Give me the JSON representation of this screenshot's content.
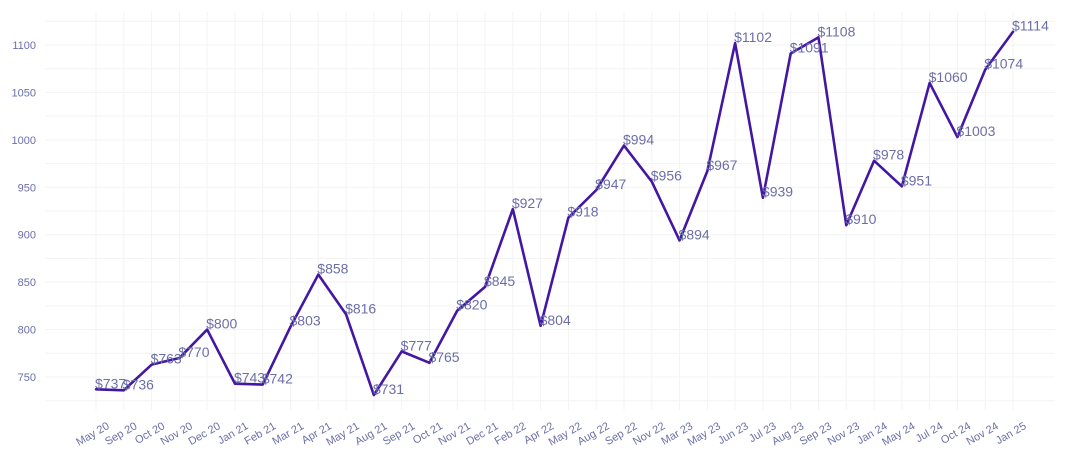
{
  "colors": {
    "line": "#4417a3",
    "text": "#6b6fa8",
    "grid": "#f3f3f6"
  },
  "chart_data": {
    "type": "line",
    "title": "",
    "xlabel": "",
    "ylabel": "",
    "ylim": [
      710,
      1120
    ],
    "y_ticks": [
      750,
      800,
      850,
      900,
      950,
      1000,
      1050,
      1100
    ],
    "grid": true,
    "legend": "none",
    "categories": [
      "May 20",
      "Sep 20",
      "Oct 20",
      "Nov 20",
      "Dec 20",
      "Jan 21",
      "Feb 21",
      "Mar 21",
      "Apr 21",
      "May 21",
      "Aug 21",
      "Sep 21",
      "Oct 21",
      "Nov 21",
      "Dec 21",
      "Feb 22",
      "Apr 22",
      "May 22",
      "Aug 22",
      "Sep 22",
      "Nov 22",
      "Mar 23",
      "May 23",
      "Jun 23",
      "Jul 23",
      "Aug 23",
      "Sep 23",
      "Nov 23",
      "Jan 24",
      "May 24",
      "Jul 24",
      "Oct 24",
      "Nov 24",
      "Jan 25"
    ],
    "values": [
      737,
      736,
      763,
      770,
      800,
      743,
      742,
      803,
      858,
      816,
      731,
      777,
      765,
      820,
      845,
      927,
      804,
      918,
      947,
      994,
      956,
      894,
      967,
      1102,
      939,
      1091,
      1108,
      910,
      978,
      951,
      1060,
      1003,
      1074,
      1114
    ],
    "data_labels": [
      "$737",
      "$736",
      "$763",
      "$770",
      "$800",
      "$743",
      "$742",
      "$803",
      "$858",
      "$816",
      "$731",
      "$777",
      "$765",
      "$820",
      "$845",
      "$927",
      "$804",
      "$918",
      "$947",
      "$994",
      "$956",
      "$894",
      "$967",
      "$1102",
      "$939",
      "$1091",
      "$1108",
      "$910",
      "$978",
      "$951",
      "$1060",
      "$1003",
      "$1074",
      "$1114"
    ]
  }
}
